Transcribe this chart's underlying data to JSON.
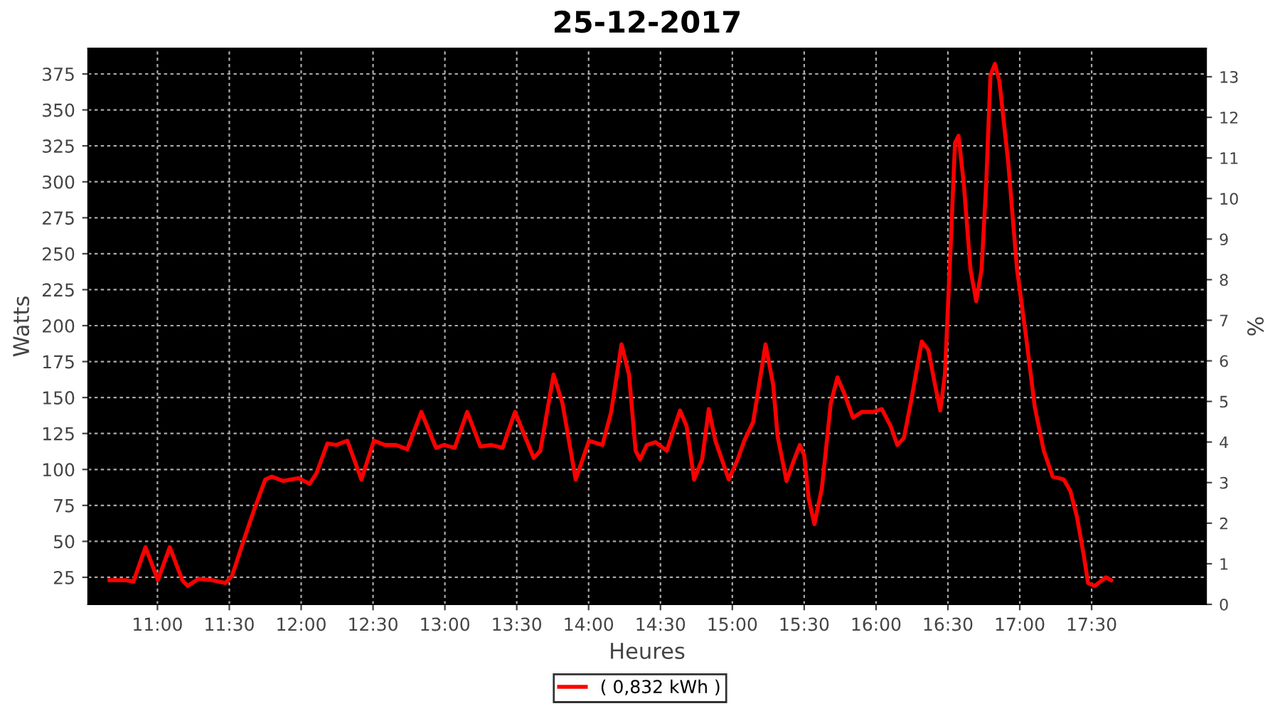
{
  "chart_data": {
    "type": "line",
    "title": "25-12-2017",
    "xlabel": "Heures",
    "ylabel": "Watts",
    "y2label": "%",
    "xlim": [
      10.518,
      18.296
    ],
    "ylim": [
      6.2,
      392.8
    ],
    "y2lim": [
      0,
      13.7
    ],
    "xticks": [
      {
        "value": 11,
        "label": "11:00"
      },
      {
        "value": 11.5,
        "label": "11:30"
      },
      {
        "value": 12,
        "label": "12:00"
      },
      {
        "value": 12.5,
        "label": "12:30"
      },
      {
        "value": 13,
        "label": "13:00"
      },
      {
        "value": 13.5,
        "label": "13:30"
      },
      {
        "value": 14,
        "label": "14:00"
      },
      {
        "value": 14.5,
        "label": "14:30"
      },
      {
        "value": 15,
        "label": "15:00"
      },
      {
        "value": 15.5,
        "label": "15:30"
      },
      {
        "value": 16,
        "label": "16:00"
      },
      {
        "value": 16.5,
        "label": "16:30"
      },
      {
        "value": 17,
        "label": "17:00"
      },
      {
        "value": 17.5,
        "label": "17:30"
      }
    ],
    "yticks": [
      25,
      50,
      75,
      100,
      125,
      150,
      175,
      200,
      225,
      250,
      275,
      300,
      325,
      350,
      375
    ],
    "y2ticks": [
      0,
      1,
      2,
      3,
      4,
      5,
      6,
      7,
      8,
      9,
      10,
      11,
      12,
      13
    ],
    "grid": true,
    "legend": "bottom",
    "marker": "none",
    "line_style": "solid",
    "series": [
      {
        "name": "( 0,832 kWh )",
        "color": "#ff0000",
        "x": [
          10.667,
          10.778,
          10.833,
          10.917,
          11.003,
          11.086,
          11.173,
          11.21,
          11.287,
          11.38,
          11.472,
          11.519,
          11.611,
          11.673,
          11.75,
          11.796,
          11.873,
          11.981,
          12.058,
          12.105,
          12.182,
          12.244,
          12.321,
          12.419,
          12.506,
          12.583,
          12.66,
          12.738,
          12.836,
          12.938,
          12.994,
          13.068,
          13.155,
          13.247,
          13.324,
          13.401,
          13.488,
          13.618,
          13.664,
          13.756,
          13.818,
          13.91,
          14.003,
          14.096,
          14.157,
          14.229,
          14.281,
          14.327,
          14.358,
          14.405,
          14.466,
          14.544,
          14.636,
          14.682,
          14.734,
          14.79,
          14.836,
          14.882,
          14.975,
          15.037,
          15.083,
          15.145,
          15.231,
          15.284,
          15.315,
          15.377,
          15.423,
          15.469,
          15.5,
          15.531,
          15.571,
          15.623,
          15.685,
          15.731,
          15.778,
          15.84,
          15.901,
          15.979,
          16.04,
          16.102,
          16.148,
          16.194,
          16.241,
          16.318,
          16.364,
          16.41,
          16.447,
          16.479,
          16.519,
          16.549,
          16.574,
          16.611,
          16.657,
          16.697,
          16.734,
          16.766,
          16.796,
          16.827,
          16.858,
          16.919,
          16.981,
          17.044,
          17.105,
          17.167,
          17.229,
          17.306,
          17.352,
          17.398,
          17.444,
          17.475,
          17.521,
          17.599,
          17.636
        ],
        "values": [
          23,
          23,
          22,
          46,
          23,
          46,
          23,
          19,
          24,
          23,
          21,
          26,
          54,
          72,
          93,
          95,
          92,
          94,
          90,
          97,
          118,
          117,
          120,
          93,
          120,
          117,
          117,
          114,
          140,
          115,
          117,
          115,
          140,
          116,
          117,
          115,
          140,
          108,
          113,
          166,
          146,
          93,
          120,
          117,
          140,
          187,
          166,
          113,
          107,
          117,
          119,
          113,
          141,
          130,
          93,
          107,
          142,
          120,
          93,
          107,
          120,
          133,
          187,
          159,
          123,
          92,
          105,
          117,
          110,
          80,
          62,
          87,
          146,
          164,
          153,
          136,
          140,
          140,
          142,
          130,
          117,
          122,
          146,
          189,
          183,
          159,
          141,
          166,
          255,
          327,
          332,
          298,
          239,
          217,
          239,
          298,
          374,
          382,
          370,
          314,
          239,
          192,
          143,
          113,
          95,
          93,
          85,
          67,
          41,
          21,
          19,
          25,
          23
        ]
      }
    ]
  }
}
